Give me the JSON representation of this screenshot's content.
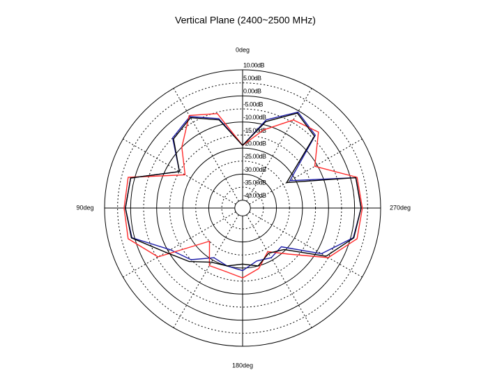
{
  "chart_data": {
    "type": "polar",
    "title": "Vertical Plane (2400~2500 MHz)",
    "theta": [
      0,
      15,
      30,
      45,
      60,
      75,
      90,
      105,
      120,
      135,
      150,
      165,
      180,
      195,
      210,
      225,
      240,
      255,
      270,
      285,
      300,
      315,
      330,
      345
    ],
    "series": [
      {
        "color": "#1c1ca8",
        "values": [
          -19,
          -7.5,
          -2.5,
          -5,
          -15,
          1.5,
          2,
          1,
          -11,
          -15,
          -21,
          -20,
          -19,
          -22,
          -21,
          -22,
          -8,
          1,
          2.5,
          2,
          -22,
          -3.5,
          -0.5,
          -8
        ]
      },
      {
        "color": "#ff2a2a",
        "values": [
          -19,
          -5.5,
          -2,
          -10,
          -17.5,
          2.5,
          2.5,
          2.5,
          -5.5,
          -25,
          -17.5,
          -17.8,
          -16.2,
          -19,
          -23.7,
          -18,
          -5,
          2.5,
          3,
          2.5,
          -11,
          -1.8,
          -4,
          -12
        ]
      },
      {
        "color": "#000000",
        "values": [
          -19,
          -8,
          -3,
          -5.5,
          -15,
          1.5,
          2,
          1.2,
          -9,
          -14,
          -19,
          -20,
          -21.5,
          -20,
          -23,
          -20.5,
          -6,
          1.2,
          2.5,
          2,
          -23.5,
          -4,
          -1,
          -8.7
        ]
      }
    ],
    "rlim": [
      -43,
      10
    ],
    "rticks": [
      {
        "value": 10,
        "label": "10.00dB"
      },
      {
        "value": 5,
        "label": "5.00dB"
      },
      {
        "value": 0,
        "label": "0.00dB"
      },
      {
        "value": -5,
        "label": "-5.00dB"
      },
      {
        "value": -10,
        "label": "-10.00dB"
      },
      {
        "value": -15,
        "label": "-15.00dB"
      },
      {
        "value": -20,
        "label": "-20.00dB"
      },
      {
        "value": -25,
        "label": "-25.00dB"
      },
      {
        "value": -30,
        "label": "-30.00dB"
      },
      {
        "value": -35,
        "label": "-35.00dB"
      },
      {
        "value": -40,
        "label": "-40.00dB"
      }
    ],
    "thetaticks": [
      {
        "value": 0,
        "label": "0deg"
      },
      {
        "value": 90,
        "label": "90deg"
      },
      {
        "value": 180,
        "label": "180deg"
      },
      {
        "value": 270,
        "label": "270deg"
      }
    ],
    "thetagrid": [
      0,
      30,
      60,
      90,
      120,
      150,
      180,
      210,
      240,
      270,
      300,
      330
    ],
    "direction": "counterclockwise",
    "zero_location": "top"
  }
}
